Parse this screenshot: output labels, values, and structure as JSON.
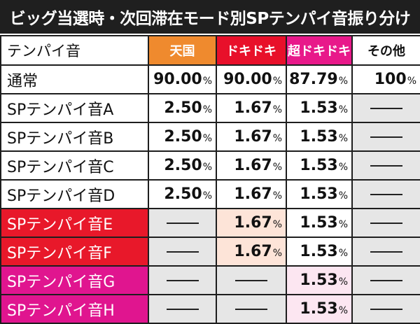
{
  "title": "ビッグ当選時・次回滞在モード別SPテンパイ音振り分け",
  "headers": {
    "row_label": "テンパイ音",
    "tengoku": "天国",
    "dokidoki": "ドキドキ",
    "chodokidoki": "超ドキドキ",
    "other": "その他"
  },
  "unit": "%",
  "rows": [
    {
      "label": "通常",
      "tengoku": "90.00",
      "dokidoki": "90.00",
      "chodokidoki": "87.79",
      "other": "100"
    },
    {
      "label": "SPテンパイ音A",
      "tengoku": "2.50",
      "dokidoki": "1.67",
      "chodokidoki": "1.53",
      "other": "—"
    },
    {
      "label": "SPテンパイ音B",
      "tengoku": "2.50",
      "dokidoki": "1.67",
      "chodokidoki": "1.53",
      "other": "—"
    },
    {
      "label": "SPテンパイ音C",
      "tengoku": "2.50",
      "dokidoki": "1.67",
      "chodokidoki": "1.53",
      "other": "—"
    },
    {
      "label": "SPテンパイ音D",
      "tengoku": "2.50",
      "dokidoki": "1.67",
      "chodokidoki": "1.53",
      "other": "—"
    },
    {
      "label": "SPテンパイ音E",
      "tengoku": "—",
      "dokidoki": "1.67",
      "chodokidoki": "1.53",
      "other": "—"
    },
    {
      "label": "SPテンパイ音F",
      "tengoku": "—",
      "dokidoki": "1.67",
      "chodokidoki": "1.53",
      "other": "—"
    },
    {
      "label": "SPテンパイ音G",
      "tengoku": "—",
      "dokidoki": "—",
      "chodokidoki": "1.53",
      "other": "—"
    },
    {
      "label": "SPテンパイ音H",
      "tengoku": "—",
      "dokidoki": "—",
      "chodokidoki": "1.53",
      "other": "—"
    }
  ],
  "colors": {
    "tengoku_header": "#ef8a2e",
    "dokidoki_header": "#e8102a",
    "chodokidoki_header": "#e8198a",
    "red_rows": "#e8182a",
    "pink_rows": "#e0158f"
  }
}
